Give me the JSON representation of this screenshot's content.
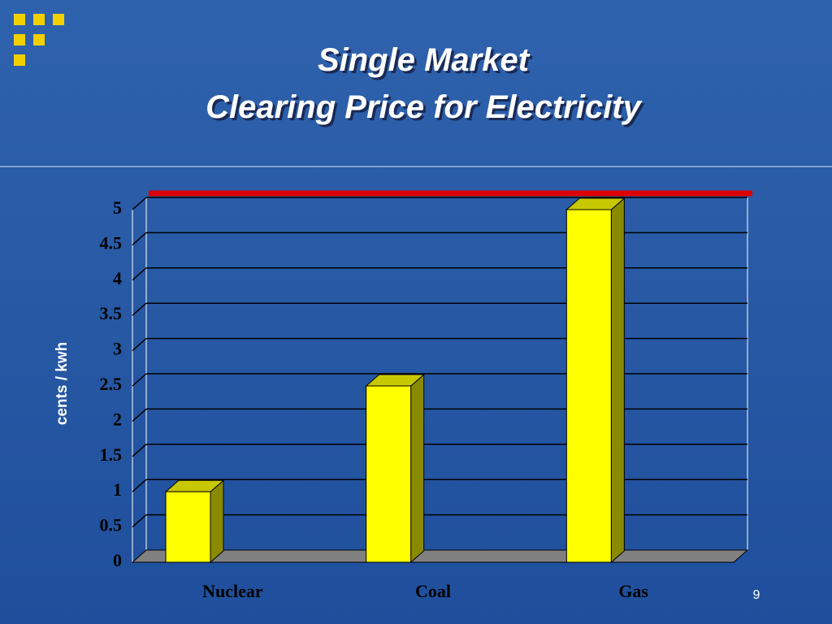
{
  "chart_data": {
    "type": "bar",
    "title": [
      "Single Market",
      "Clearing Price for Electricity"
    ],
    "y_label": "cents / kwh",
    "categories": [
      "Nuclear",
      "Coal",
      "Gas"
    ],
    "values": [
      1,
      2.5,
      5
    ],
    "color": "#ffff00",
    "ylim": [
      0,
      5
    ],
    "yticks": [
      0,
      0.5,
      1,
      1.5,
      2,
      2.5,
      3,
      3.5,
      4,
      4.5,
      5
    ],
    "grid": true,
    "reference_line": {
      "value": 5,
      "color": "#dd0000"
    }
  },
  "page_number": "9"
}
